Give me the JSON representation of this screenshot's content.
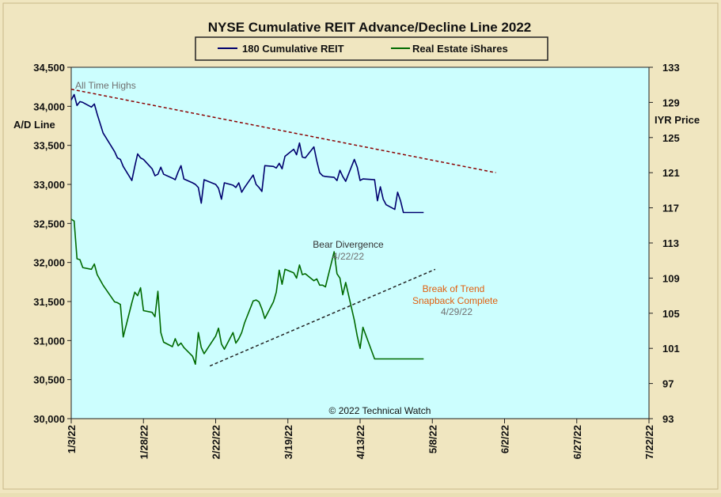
{
  "chart_data": {
    "type": "line",
    "title": "NYSE Cumulative  REIT Advance/Decline  Line 2022",
    "legend": [
      "180 Cumulative REIT",
      "Real Estate iShares"
    ],
    "legend_placement": "top-center",
    "ylabel_left": "A/D Line",
    "ylabel_right": "IYR Price",
    "y_left_ticks": [
      "30,000",
      "30,500",
      "31,000",
      "31,500",
      "32,000",
      "32,500",
      "33,000",
      "33,500",
      "34,000",
      "34,500"
    ],
    "y_right_ticks": [
      "93",
      "97",
      "101",
      "105",
      "109",
      "113",
      "117",
      "121",
      "125",
      "129",
      "133"
    ],
    "x_ticks": [
      "1/3/22",
      "1/28/22",
      "2/22/22",
      "3/19/22",
      "4/13/22",
      "5/8/22",
      "6/2/22",
      "6/27/22",
      "7/22/22"
    ],
    "ylim_left": [
      30000,
      34500
    ],
    "ylim_right": [
      93,
      133
    ],
    "xlim": [
      "2022-01-03",
      "2022-07-22"
    ],
    "grid": false,
    "copyright": "© 2022 Technical  Watch",
    "colors": {
      "adline": "#00006e",
      "iyr": "#006a00",
      "plot_bg": "#ccfefe",
      "resistance": "#8b0000",
      "support": "#222222"
    },
    "series": [
      {
        "name": "180 Cumulative REIT",
        "axis": "left",
        "x": [
          "2022-01-03",
          "2022-01-04",
          "2022-01-05",
          "2022-01-06",
          "2022-01-07",
          "2022-01-10",
          "2022-01-11",
          "2022-01-12",
          "2022-01-13",
          "2022-01-14",
          "2022-01-18",
          "2022-01-19",
          "2022-01-20",
          "2022-01-21",
          "2022-01-24",
          "2022-01-25",
          "2022-01-26",
          "2022-01-27",
          "2022-01-28",
          "2022-01-31",
          "2022-02-01",
          "2022-02-02",
          "2022-02-03",
          "2022-02-04",
          "2022-02-07",
          "2022-02-08",
          "2022-02-09",
          "2022-02-10",
          "2022-02-11",
          "2022-02-14",
          "2022-02-15",
          "2022-02-16",
          "2022-02-17",
          "2022-02-18",
          "2022-02-22",
          "2022-02-23",
          "2022-02-24",
          "2022-02-25",
          "2022-02-28",
          "2022-03-01",
          "2022-03-02",
          "2022-03-03",
          "2022-03-04",
          "2022-03-07",
          "2022-03-08",
          "2022-03-09",
          "2022-03-10",
          "2022-03-11",
          "2022-03-14",
          "2022-03-15",
          "2022-03-16",
          "2022-03-17",
          "2022-03-18",
          "2022-03-21",
          "2022-03-22",
          "2022-03-23",
          "2022-03-24",
          "2022-03-25",
          "2022-03-28",
          "2022-03-29",
          "2022-03-30",
          "2022-03-31",
          "2022-04-01",
          "2022-04-04",
          "2022-04-05",
          "2022-04-06",
          "2022-04-07",
          "2022-04-08",
          "2022-04-11",
          "2022-04-12",
          "2022-04-13",
          "2022-04-14",
          "2022-04-18",
          "2022-04-19",
          "2022-04-20",
          "2022-04-21",
          "2022-04-22",
          "2022-04-25",
          "2022-04-26",
          "2022-04-27",
          "2022-04-28",
          "2022-04-29",
          "2022-05-02",
          "2022-05-03",
          "2022-05-04",
          "2022-05-05"
        ],
        "values": [
          34080,
          34150,
          34010,
          34060,
          34050,
          33990,
          34030,
          33900,
          33780,
          33660,
          33420,
          33340,
          33320,
          33230,
          33050,
          33230,
          33390,
          33340,
          33320,
          33200,
          33110,
          33130,
          33220,
          33130,
          33080,
          33060,
          33160,
          33240,
          33070,
          33020,
          33000,
          32960,
          32760,
          33060,
          33000,
          32950,
          32810,
          33020,
          32990,
          32960,
          33020,
          32900,
          32960,
          33120,
          33000,
          32960,
          32910,
          33240,
          33230,
          33210,
          33270,
          33200,
          33360,
          33450,
          33380,
          33530,
          33350,
          33340,
          33480,
          33300,
          33150,
          33110,
          33100,
          33090,
          33050,
          33180,
          33100,
          33040,
          33320,
          33220,
          33050,
          33070,
          33060,
          32790,
          32970,
          32810,
          32740,
          32680,
          32900,
          32790,
          32640,
          32640,
          32640,
          32640,
          32640,
          32640
        ]
      },
      {
        "name": "Real Estate iShares",
        "axis": "right",
        "x": [
          "2022-01-03",
          "2022-01-04",
          "2022-01-05",
          "2022-01-06",
          "2022-01-07",
          "2022-01-10",
          "2022-01-11",
          "2022-01-12",
          "2022-01-13",
          "2022-01-14",
          "2022-01-18",
          "2022-01-19",
          "2022-01-20",
          "2022-01-21",
          "2022-01-24",
          "2022-01-25",
          "2022-01-26",
          "2022-01-27",
          "2022-01-28",
          "2022-01-31",
          "2022-02-01",
          "2022-02-02",
          "2022-02-03",
          "2022-02-04",
          "2022-02-07",
          "2022-02-08",
          "2022-02-09",
          "2022-02-10",
          "2022-02-11",
          "2022-02-14",
          "2022-02-15",
          "2022-02-16",
          "2022-02-17",
          "2022-02-18",
          "2022-02-22",
          "2022-02-23",
          "2022-02-24",
          "2022-02-25",
          "2022-02-28",
          "2022-03-01",
          "2022-03-02",
          "2022-03-03",
          "2022-03-04",
          "2022-03-07",
          "2022-03-08",
          "2022-03-09",
          "2022-03-10",
          "2022-03-11",
          "2022-03-14",
          "2022-03-15",
          "2022-03-16",
          "2022-03-17",
          "2022-03-18",
          "2022-03-21",
          "2022-03-22",
          "2022-03-23",
          "2022-03-24",
          "2022-03-25",
          "2022-03-28",
          "2022-03-29",
          "2022-03-30",
          "2022-03-31",
          "2022-04-01",
          "2022-04-04",
          "2022-04-05",
          "2022-04-06",
          "2022-04-07",
          "2022-04-08",
          "2022-04-11",
          "2022-04-12",
          "2022-04-13",
          "2022-04-14",
          "2022-04-18",
          "2022-04-19",
          "2022-04-20",
          "2022-04-21",
          "2022-04-22",
          "2022-04-25",
          "2022-04-26",
          "2022-04-27",
          "2022-04-28",
          "2022-04-29",
          "2022-05-02",
          "2022-05-03",
          "2022-05-04",
          "2022-05-05"
        ],
        "values": [
          115.7,
          115.5,
          111.2,
          111.1,
          110.2,
          110.0,
          110.6,
          109.4,
          108.8,
          108.2,
          106.3,
          106.2,
          106.0,
          102.3,
          106.2,
          107.4,
          107.0,
          107.9,
          105.3,
          105.1,
          104.6,
          107.5,
          102.8,
          101.7,
          101.2,
          102.1,
          101.3,
          101.6,
          101.1,
          100.1,
          99.2,
          102.8,
          101.1,
          100.4,
          102.4,
          103.3,
          101.5,
          100.9,
          102.8,
          101.6,
          102.1,
          102.8,
          103.9,
          106.4,
          106.5,
          106.3,
          105.5,
          104.4,
          106.3,
          107.4,
          109.9,
          108.3,
          110.0,
          109.6,
          109.0,
          110.5,
          109.4,
          109.5,
          108.7,
          108.9,
          108.2,
          108.2,
          108.0,
          112.0,
          109.5,
          109.0,
          107.1,
          108.5,
          104.2,
          102.4,
          101.0,
          103.4,
          99.8,
          99.8,
          99.8,
          99.8,
          99.8,
          99.8,
          99.8,
          99.8,
          99.8,
          99.8,
          99.8,
          99.8,
          99.8,
          99.8
        ]
      }
    ],
    "trendlines": [
      {
        "name": "resistance",
        "x": [
          "2022-01-03",
          "2022-05-30"
        ],
        "y_right": [
          130.5,
          121.0
        ]
      },
      {
        "name": "support",
        "x": [
          "2022-02-20",
          "2022-05-09"
        ],
        "y_right": [
          99.0,
          110.0
        ]
      }
    ],
    "annotations": [
      {
        "text": "All Time Highs"
      },
      {
        "text": "Bear Divergence"
      },
      {
        "text": "4/22/22"
      },
      {
        "text": "Break of Trend"
      },
      {
        "text": "Snapback Complete"
      },
      {
        "text": "4/29/22"
      }
    ]
  }
}
